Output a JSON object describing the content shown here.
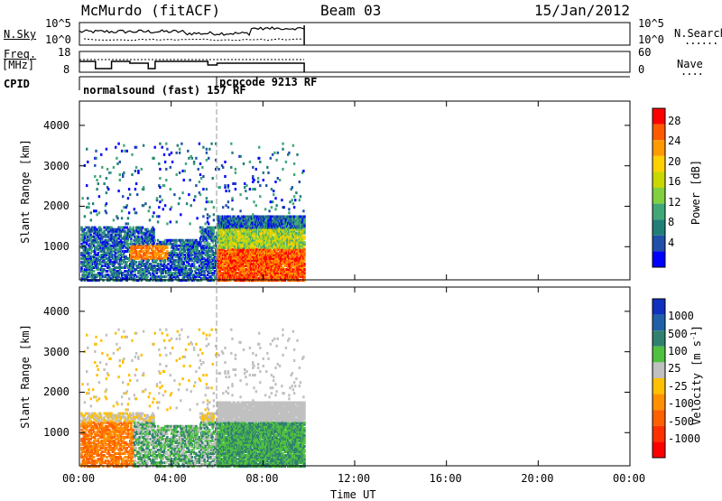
{
  "header": {
    "station": "McMurdo (fitACF)",
    "beam": "Beam 03",
    "date": "15/Jan/2012"
  },
  "side_labels": {
    "nsky": "N.Sky",
    "nsearch": "N.Search",
    "freq": "Freq.",
    "freq_unit": "[MHz]",
    "nave": "Nave",
    "cpid": "CPID"
  },
  "cpid_labels": [
    "normalsound (fast) 157 RF",
    "pcpcode 9213 RF"
  ],
  "chart_data": [
    {
      "type": "line",
      "name": "noise",
      "y_ticks": [
        "10^5",
        "10^0"
      ],
      "y2_ticks": [
        "10^5",
        "10^0"
      ],
      "x_range_hours": [
        0,
        24
      ]
    },
    {
      "type": "line",
      "name": "freq-nave",
      "y_ticks": [
        "18",
        "8"
      ],
      "y2_ticks": [
        "60",
        "0"
      ],
      "x_range_hours": [
        0,
        24
      ]
    },
    {
      "type": "heatmap",
      "name": "power",
      "ylabel": "Slant Range [km]",
      "y_ticks": [
        "4000",
        "3000",
        "2000",
        "1000"
      ],
      "ylim": [
        180,
        4600
      ],
      "colorbar": {
        "label": "Power [dB]",
        "ticks": [
          "28",
          "24",
          "20",
          "16",
          "12",
          "8",
          "4"
        ],
        "colors": [
          "#ff0000",
          "#ff5a00",
          "#ff9a00",
          "#ffd000",
          "#c8d800",
          "#80d040",
          "#40a878",
          "#208078",
          "#2050a8",
          "#0000ff"
        ]
      }
    },
    {
      "type": "heatmap",
      "name": "velocity",
      "ylabel": "Slant Range [km]",
      "y_ticks": [
        "4000",
        "3000",
        "2000",
        "1000"
      ],
      "ylim": [
        180,
        4600
      ],
      "colorbar": {
        "label": "Velocity [m s-1]",
        "ticks": [
          "1000",
          "500",
          "100",
          "25",
          "-25",
          "-100",
          "-500",
          "-1000"
        ],
        "colors": [
          "#1030c0",
          "#2060a8",
          "#308070",
          "#50c040",
          "#c0c0c0",
          "#ffc000",
          "#ff9000",
          "#ff6000",
          "#ff3000",
          "#ff0000"
        ]
      }
    }
  ],
  "x_axis": {
    "label": "Time UT",
    "ticks": [
      "00:00",
      "04:00",
      "08:00",
      "12:00",
      "16:00",
      "20:00",
      "00:00"
    ],
    "data_end_hours": 9.8,
    "mode_change_hours": 5.95
  }
}
